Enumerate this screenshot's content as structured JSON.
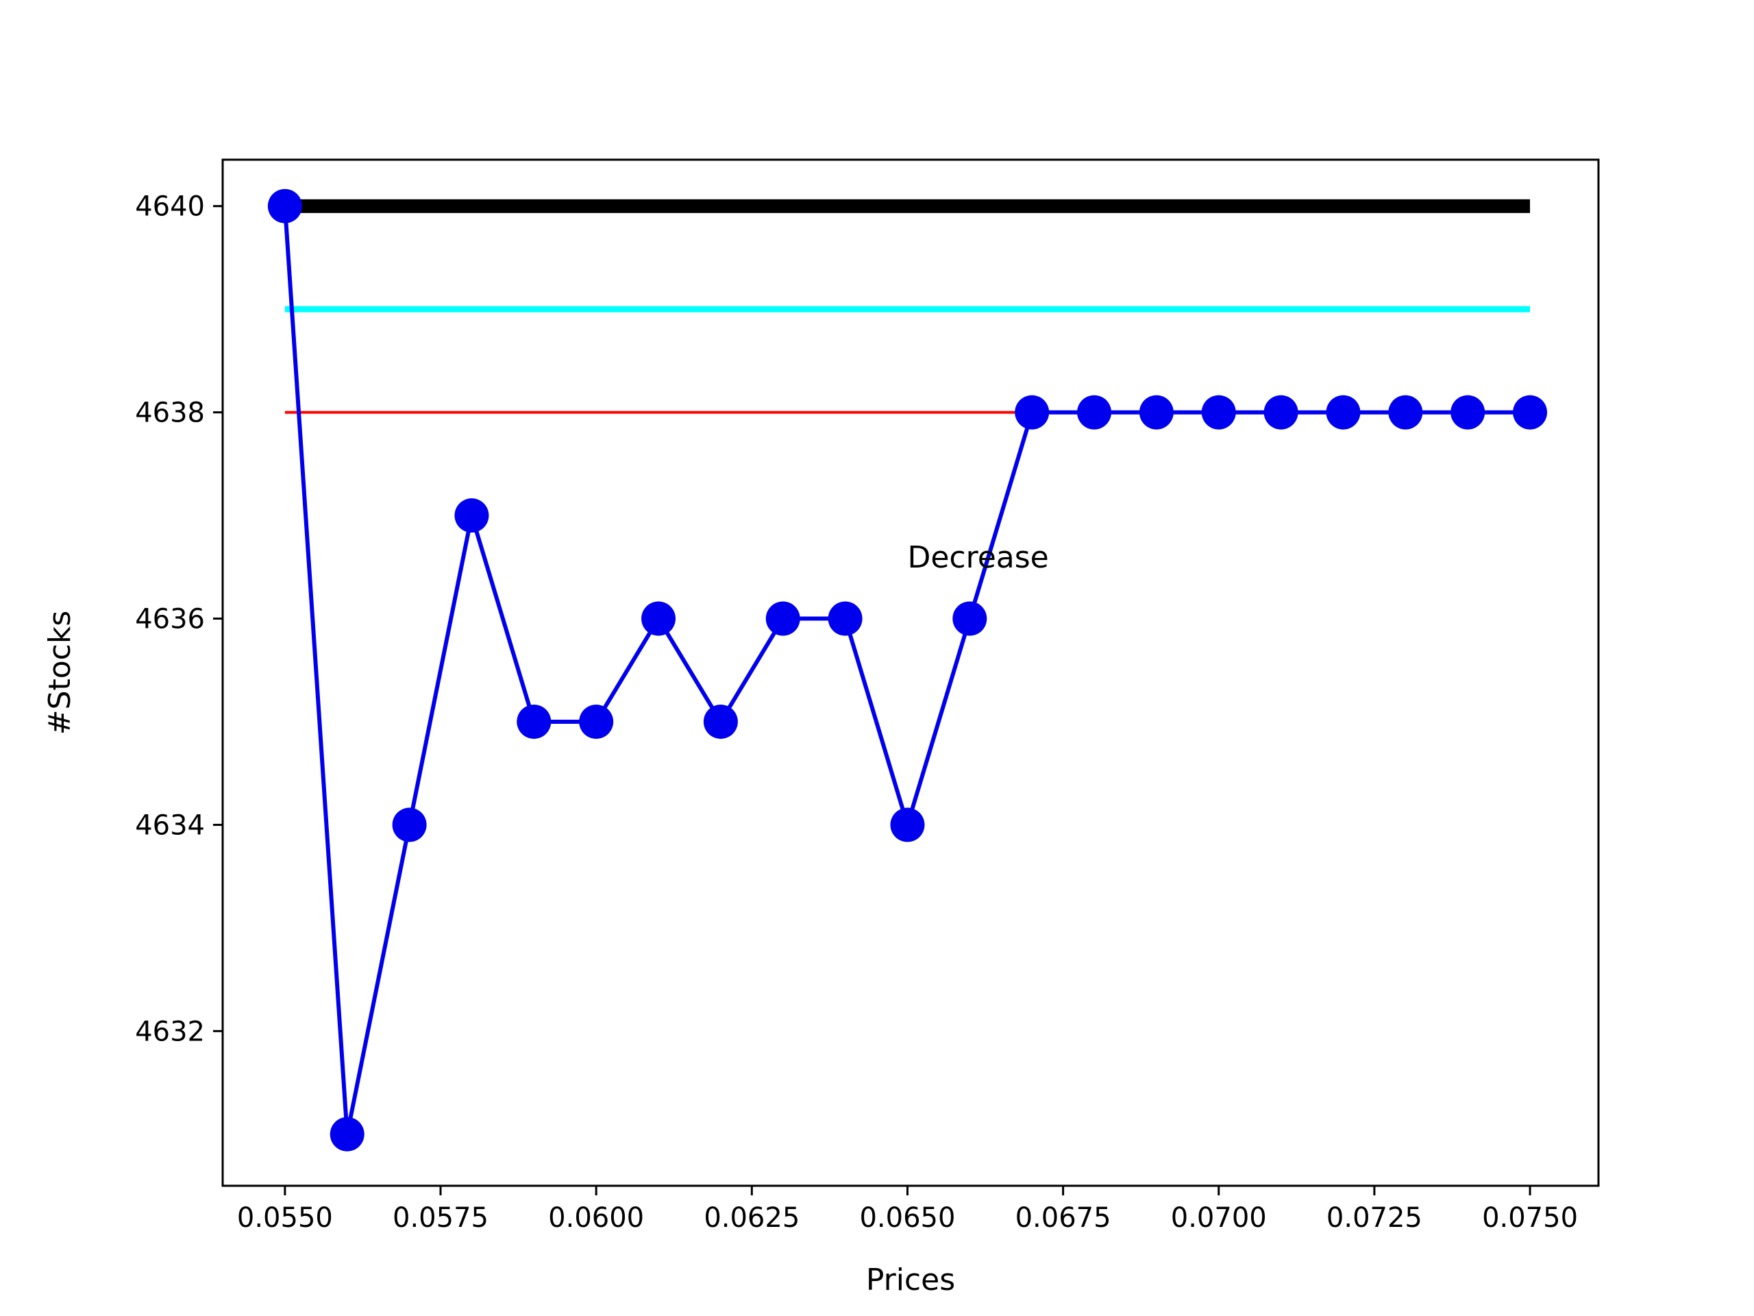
{
  "chart_data": {
    "type": "line",
    "title": "",
    "xlabel": "Prices",
    "ylabel": "#Stocks",
    "xlim": [
      0.054,
      0.0761
    ],
    "ylim": [
      4630.5,
      4640.45
    ],
    "x_ticks": [
      "0.0550",
      "0.0575",
      "0.0600",
      "0.0625",
      "0.0650",
      "0.0675",
      "0.0700",
      "0.0725",
      "0.0750"
    ],
    "y_ticks": [
      "4632",
      "4634",
      "4636",
      "4638",
      "4640"
    ],
    "grid": false,
    "legend": "none",
    "series": [
      {
        "color": "#000000",
        "style": "thick-line",
        "x": [
          0.055,
          0.075
        ],
        "y": [
          4640,
          4640
        ]
      },
      {
        "color": "#00ffff",
        "style": "line",
        "x": [
          0.055,
          0.075
        ],
        "y": [
          4639,
          4639
        ]
      },
      {
        "color": "#ff0000",
        "style": "thin-line",
        "x": [
          0.055,
          0.075
        ],
        "y": [
          4638,
          4638
        ]
      },
      {
        "color": "#0000ee",
        "style": "line-markers",
        "x": [
          0.055,
          0.056,
          0.057,
          0.058,
          0.059,
          0.06,
          0.061,
          0.062,
          0.063,
          0.064,
          0.065,
          0.066,
          0.067,
          0.068,
          0.069,
          0.07,
          0.071,
          0.072,
          0.073,
          0.074,
          0.075
        ],
        "y": [
          4640,
          4631,
          4634,
          4637,
          4635,
          4635,
          4636,
          4635,
          4636,
          4636,
          4634,
          4636,
          4638,
          4638,
          4638,
          4638,
          4638,
          4638,
          4638,
          4638,
          4638
        ]
      }
    ],
    "annotations": [
      {
        "text": "Decrease",
        "x": 0.065,
        "y": 4636.6
      }
    ]
  }
}
